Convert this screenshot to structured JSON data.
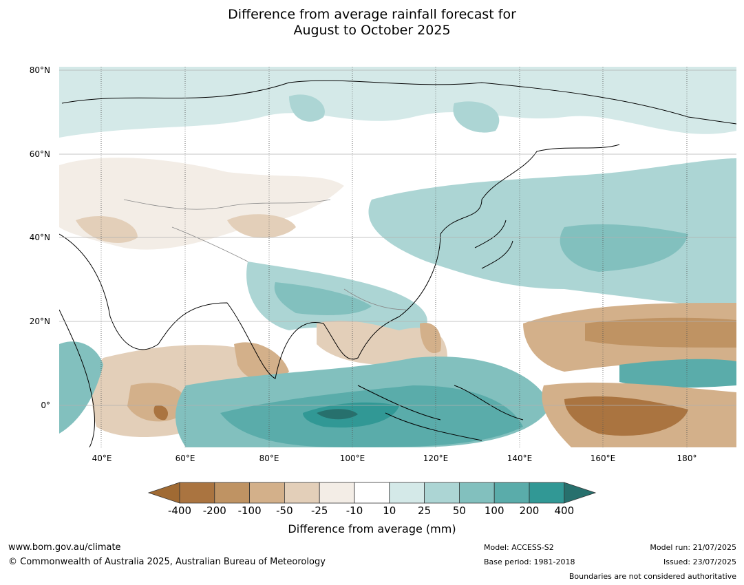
{
  "title": {
    "line1": "Difference from average rainfall forecast for",
    "line2": "August to October 2025"
  },
  "map": {
    "lat_labels": [
      "80°N",
      "60°N",
      "40°N",
      "20°N",
      "0°"
    ],
    "lon_labels": [
      "40°E",
      "60°E",
      "80°E",
      "100°E",
      "120°E",
      "140°E",
      "160°E",
      "180°"
    ],
    "lon_range": [
      30,
      190
    ],
    "lat_range": [
      -10,
      80
    ]
  },
  "colorbar": {
    "title": "Difference from average (mm)",
    "ticks": [
      "-400",
      "-200",
      "-100",
      "-50",
      "-25",
      "-10",
      "10",
      "25",
      "50",
      "100",
      "200",
      "400"
    ],
    "colors": [
      "#a06a33",
      "#aa7440",
      "#bf9363",
      "#d3b08a",
      "#e3cfb9",
      "#f3ede6",
      "#ffffff",
      "#d4e9e8",
      "#acd5d4",
      "#82c0be",
      "#5aacaa",
      "#319895",
      "#27706d"
    ]
  },
  "footer": {
    "site": "www.bom.gov.au/climate",
    "copyright": "© Commonwealth of Australia 2025, Australian Bureau of Meteorology",
    "model": "Model: ACCESS-S2",
    "base_period": "Base period: 1981-2018",
    "model_run": "Model run: 21/07/2025",
    "issued": "Issued: 23/07/2025",
    "boundaries": "Boundaries are not considered authoritative"
  }
}
